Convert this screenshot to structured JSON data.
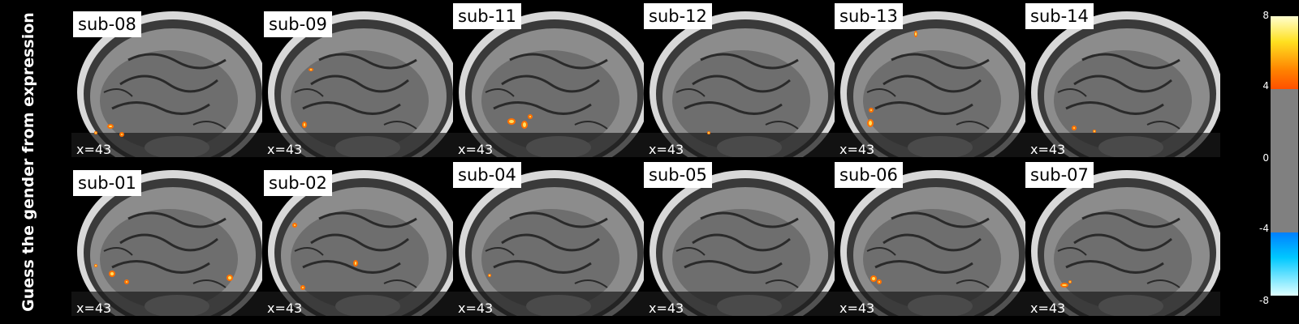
{
  "title": "Guess the gender from expression",
  "coordinate": "x=43",
  "rows": [
    {
      "subjects": [
        "sub-08",
        "sub-09",
        "sub-11",
        "sub-12",
        "sub-13",
        "sub-14"
      ]
    },
    {
      "subjects": [
        "sub-01",
        "sub-02",
        "sub-04",
        "sub-05",
        "sub-06",
        "sub-07"
      ]
    }
  ],
  "colorbar": {
    "ticks": [
      "8",
      "4",
      "0",
      "-4",
      "-8"
    ],
    "colors": {
      "hot_top": "#ffffc0",
      "hot_mid": "#ffd000",
      "hot_low": "#ff6000",
      "cold_low": "#00a0ff",
      "cold_high": "#c0ffff",
      "neutral": "#808080"
    }
  }
}
